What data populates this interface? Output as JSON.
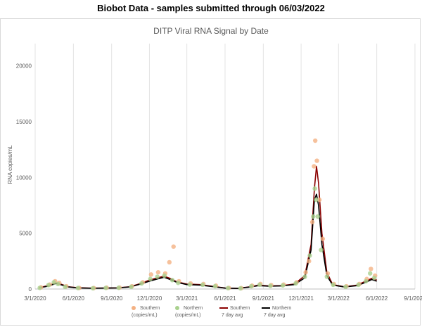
{
  "page_title": "Biobot Data - samples submitted through 06/03/2022",
  "chart_data": {
    "type": "scatter",
    "title": "DITP Viral RNA Signal by Date",
    "xlabel": "",
    "ylabel": "RNA copies/mL",
    "x_domain": [
      "2020-03-01",
      "2022-09-01"
    ],
    "ylim": [
      0,
      22000
    ],
    "y_ticks": [
      0,
      5000,
      10000,
      15000,
      20000
    ],
    "x_ticks": [
      "3/1/2020",
      "6/1/2020",
      "9/1/2020",
      "12/1/2020",
      "3/1/2021",
      "6/1/2021",
      "9/1/2021",
      "12/1/2021",
      "3/1/2022",
      "6/1/2022",
      "9/1/2022"
    ],
    "x_tick_dates": [
      "2020-03-01",
      "2020-06-01",
      "2020-09-01",
      "2020-12-01",
      "2021-03-01",
      "2021-06-01",
      "2021-09-01",
      "2021-12-01",
      "2022-03-01",
      "2022-06-01",
      "2022-09-01"
    ],
    "grid": "vertical",
    "legend_position": "bottom",
    "colors": {
      "southern": "#f4b183",
      "northern": "#a9d18e",
      "southern_avg": "#8b0000",
      "northern_avg": "#000000"
    },
    "legend": [
      {
        "line1": "Southern",
        "line2": "(copies/mL)",
        "kind": "southern-marker"
      },
      {
        "line1": "Northern",
        "line2": "(copies/mL)",
        "kind": "northern-marker"
      },
      {
        "line1": "Southern",
        "line2": "7 day avg",
        "kind": "southern-line"
      },
      {
        "line1": "Northern",
        "line2": "7 day avg",
        "kind": "northern-line"
      }
    ],
    "series": [
      {
        "name": "Southern 7 day avg",
        "color": "#8b0000",
        "points": [
          [
            "2020-03-10",
            120
          ],
          [
            "2020-04-01",
            300
          ],
          [
            "2020-04-20",
            550
          ],
          [
            "2020-05-01",
            450
          ],
          [
            "2020-05-20",
            200
          ],
          [
            "2020-06-10",
            120
          ],
          [
            "2020-07-15",
            80
          ],
          [
            "2020-08-15",
            90
          ],
          [
            "2020-09-15",
            110
          ],
          [
            "2020-10-15",
            200
          ],
          [
            "2020-11-10",
            500
          ],
          [
            "2020-12-01",
            800
          ],
          [
            "2020-12-20",
            1000
          ],
          [
            "2021-01-05",
            1150
          ],
          [
            "2021-01-20",
            950
          ],
          [
            "2021-02-05",
            650
          ],
          [
            "2021-03-01",
            450
          ],
          [
            "2021-04-01",
            400
          ],
          [
            "2021-05-01",
            250
          ],
          [
            "2021-06-01",
            90
          ],
          [
            "2021-07-01",
            60
          ],
          [
            "2021-08-01",
            200
          ],
          [
            "2021-08-20",
            350
          ],
          [
            "2021-09-15",
            280
          ],
          [
            "2021-10-15",
            300
          ],
          [
            "2021-11-15",
            450
          ],
          [
            "2021-12-10",
            1200
          ],
          [
            "2021-12-25",
            4000
          ],
          [
            "2022-01-02",
            9000
          ],
          [
            "2022-01-07",
            11000
          ],
          [
            "2022-01-12",
            9500
          ],
          [
            "2022-01-20",
            5000
          ],
          [
            "2022-02-01",
            1500
          ],
          [
            "2022-02-15",
            400
          ],
          [
            "2022-03-15",
            200
          ],
          [
            "2022-04-15",
            350
          ],
          [
            "2022-05-05",
            700
          ],
          [
            "2022-05-20",
            950
          ],
          [
            "2022-06-01",
            800
          ]
        ]
      },
      {
        "name": "Northern 7 day avg",
        "color": "#000000",
        "points": [
          [
            "2020-03-10",
            100
          ],
          [
            "2020-04-01",
            250
          ],
          [
            "2020-04-20",
            500
          ],
          [
            "2020-05-01",
            400
          ],
          [
            "2020-05-20",
            180
          ],
          [
            "2020-06-10",
            100
          ],
          [
            "2020-07-15",
            70
          ],
          [
            "2020-08-15",
            80
          ],
          [
            "2020-09-15",
            100
          ],
          [
            "2020-10-15",
            180
          ],
          [
            "2020-11-10",
            450
          ],
          [
            "2020-12-01",
            700
          ],
          [
            "2020-12-20",
            900
          ],
          [
            "2021-01-05",
            1050
          ],
          [
            "2021-01-20",
            850
          ],
          [
            "2021-02-05",
            600
          ],
          [
            "2021-03-01",
            400
          ],
          [
            "2021-04-01",
            350
          ],
          [
            "2021-05-01",
            220
          ],
          [
            "2021-06-01",
            80
          ],
          [
            "2021-07-01",
            50
          ],
          [
            "2021-08-01",
            180
          ],
          [
            "2021-08-20",
            300
          ],
          [
            "2021-09-15",
            250
          ],
          [
            "2021-10-15",
            280
          ],
          [
            "2021-11-15",
            400
          ],
          [
            "2021-12-10",
            1000
          ],
          [
            "2021-12-25",
            3500
          ],
          [
            "2022-01-02",
            8000
          ],
          [
            "2022-01-07",
            8500
          ],
          [
            "2022-01-12",
            7500
          ],
          [
            "2022-01-20",
            4000
          ],
          [
            "2022-02-01",
            1200
          ],
          [
            "2022-02-15",
            350
          ],
          [
            "2022-03-15",
            180
          ],
          [
            "2022-04-15",
            300
          ],
          [
            "2022-05-05",
            600
          ],
          [
            "2022-05-20",
            850
          ],
          [
            "2022-06-01",
            700
          ]
        ]
      },
      {
        "name": "Southern (copies/mL)",
        "color": "#f4b183",
        "points": [
          [
            "2020-03-15",
            150
          ],
          [
            "2020-04-05",
            400
          ],
          [
            "2020-04-18",
            700
          ],
          [
            "2020-04-28",
            550
          ],
          [
            "2020-05-15",
            250
          ],
          [
            "2020-06-15",
            100
          ],
          [
            "2020-07-20",
            90
          ],
          [
            "2020-08-20",
            120
          ],
          [
            "2020-09-20",
            130
          ],
          [
            "2020-10-20",
            250
          ],
          [
            "2020-11-15",
            600
          ],
          [
            "2020-12-05",
            1300
          ],
          [
            "2020-12-22",
            1500
          ],
          [
            "2021-01-08",
            1400
          ],
          [
            "2021-01-18",
            2400
          ],
          [
            "2021-01-28",
            3800
          ],
          [
            "2021-02-10",
            700
          ],
          [
            "2021-03-10",
            500
          ],
          [
            "2021-04-10",
            450
          ],
          [
            "2021-05-10",
            300
          ],
          [
            "2021-06-10",
            100
          ],
          [
            "2021-07-10",
            80
          ],
          [
            "2021-08-05",
            300
          ],
          [
            "2021-08-25",
            450
          ],
          [
            "2021-09-20",
            350
          ],
          [
            "2021-10-20",
            400
          ],
          [
            "2021-11-20",
            600
          ],
          [
            "2021-12-12",
            1500
          ],
          [
            "2021-12-20",
            2500
          ],
          [
            "2021-12-28",
            6000
          ],
          [
            "2022-01-01",
            11000
          ],
          [
            "2022-01-04",
            13300
          ],
          [
            "2022-01-08",
            11500
          ],
          [
            "2022-01-14",
            8000
          ],
          [
            "2022-01-22",
            4500
          ],
          [
            "2022-02-03",
            1400
          ],
          [
            "2022-02-18",
            450
          ],
          [
            "2022-03-20",
            250
          ],
          [
            "2022-04-20",
            450
          ],
          [
            "2022-05-08",
            900
          ],
          [
            "2022-05-18",
            1800
          ],
          [
            "2022-05-28",
            1200
          ]
        ]
      },
      {
        "name": "Northern (copies/mL)",
        "color": "#a9d18e",
        "points": [
          [
            "2020-03-12",
            100
          ],
          [
            "2020-04-02",
            350
          ],
          [
            "2020-04-15",
            600
          ],
          [
            "2020-04-25",
            450
          ],
          [
            "2020-05-12",
            200
          ],
          [
            "2020-06-12",
            90
          ],
          [
            "2020-07-18",
            70
          ],
          [
            "2020-08-18",
            100
          ],
          [
            "2020-09-18",
            110
          ],
          [
            "2020-10-18",
            200
          ],
          [
            "2020-11-12",
            500
          ],
          [
            "2020-12-03",
            900
          ],
          [
            "2020-12-20",
            1100
          ],
          [
            "2021-01-06",
            1200
          ],
          [
            "2021-01-25",
            800
          ],
          [
            "2021-02-08",
            550
          ],
          [
            "2021-03-08",
            400
          ],
          [
            "2021-04-08",
            380
          ],
          [
            "2021-05-08",
            250
          ],
          [
            "2021-06-08",
            80
          ],
          [
            "2021-07-08",
            60
          ],
          [
            "2021-08-03",
            250
          ],
          [
            "2021-08-23",
            380
          ],
          [
            "2021-09-18",
            280
          ],
          [
            "2021-10-18",
            320
          ],
          [
            "2021-11-18",
            500
          ],
          [
            "2021-12-10",
            1100
          ],
          [
            "2021-12-22",
            3000
          ],
          [
            "2021-12-30",
            6500
          ],
          [
            "2022-01-03",
            9000
          ],
          [
            "2022-01-06",
            8000
          ],
          [
            "2022-01-10",
            6500
          ],
          [
            "2022-01-18",
            3500
          ],
          [
            "2022-02-01",
            1100
          ],
          [
            "2022-02-16",
            380
          ],
          [
            "2022-03-18",
            200
          ],
          [
            "2022-04-18",
            380
          ],
          [
            "2022-05-06",
            700
          ],
          [
            "2022-05-16",
            1400
          ],
          [
            "2022-05-26",
            1000
          ]
        ]
      }
    ]
  }
}
